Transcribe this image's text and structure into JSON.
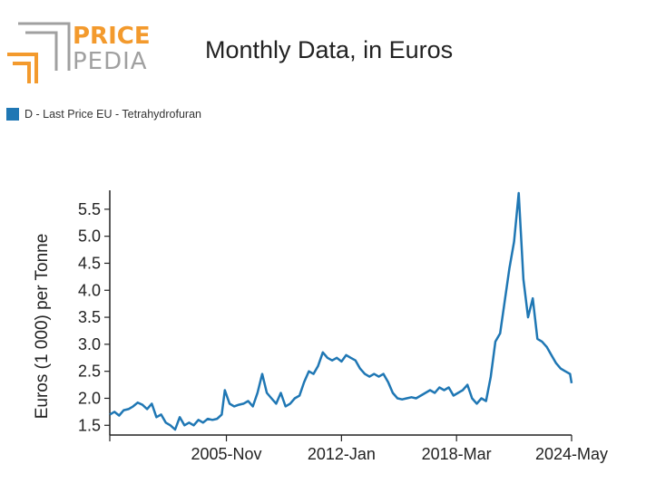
{
  "logo": {
    "word1": "PRICE",
    "word2": "PEDIA",
    "colors": {
      "orange": "#f39a2d",
      "gray": "#a0a0a0"
    }
  },
  "title": "Monthly Data, in Euros",
  "legend": [
    {
      "label": "D - Last Price EU - Tetrahydrofuran",
      "color": "#1f77b4"
    }
  ],
  "chart_data": {
    "type": "line",
    "ylabel": "Euros (1 000) per Tonne",
    "xlabel": "",
    "ylim": [
      1.32,
      5.85
    ],
    "yticks": [
      1.5,
      2.0,
      2.5,
      3.0,
      3.5,
      4.0,
      4.5,
      5.0,
      5.5
    ],
    "ytick_labels": [
      "1.5",
      "2.0",
      "2.5",
      "3.0",
      "3.5",
      "4.0",
      "4.5",
      "5.0",
      "5.5"
    ],
    "x_start": "1999-08",
    "x_end": "2024-05",
    "xticks": [
      "1999-08",
      "2005-11",
      "2012-01",
      "2018-03",
      "2024-05"
    ],
    "xtick_labels": [
      "",
      "2005-Nov",
      "2012-Jan",
      "2018-Mar",
      "2024-May"
    ],
    "grid": false,
    "legend_position": "top-left",
    "series": [
      {
        "name": "D - Last Price EU - Tetrahydrofuran",
        "color": "#1f77b4",
        "points": [
          [
            "1999-08",
            1.7
          ],
          [
            "1999-11",
            1.75
          ],
          [
            "2000-02",
            1.68
          ],
          [
            "2000-05",
            1.78
          ],
          [
            "2000-08",
            1.8
          ],
          [
            "2000-11",
            1.85
          ],
          [
            "2001-02",
            1.92
          ],
          [
            "2001-05",
            1.88
          ],
          [
            "2001-08",
            1.8
          ],
          [
            "2001-11",
            1.9
          ],
          [
            "2002-02",
            1.65
          ],
          [
            "2002-05",
            1.7
          ],
          [
            "2002-08",
            1.55
          ],
          [
            "2002-11",
            1.5
          ],
          [
            "2003-02",
            1.42
          ],
          [
            "2003-05",
            1.65
          ],
          [
            "2003-08",
            1.5
          ],
          [
            "2003-11",
            1.55
          ],
          [
            "2004-02",
            1.5
          ],
          [
            "2004-05",
            1.6
          ],
          [
            "2004-08",
            1.55
          ],
          [
            "2004-11",
            1.62
          ],
          [
            "2005-02",
            1.6
          ],
          [
            "2005-05",
            1.62
          ],
          [
            "2005-08",
            1.7
          ],
          [
            "2005-10",
            2.15
          ],
          [
            "2006-01",
            1.9
          ],
          [
            "2006-04",
            1.85
          ],
          [
            "2006-07",
            1.88
          ],
          [
            "2006-10",
            1.9
          ],
          [
            "2007-01",
            1.95
          ],
          [
            "2007-04",
            1.85
          ],
          [
            "2007-07",
            2.1
          ],
          [
            "2007-10",
            2.45
          ],
          [
            "2008-01",
            2.1
          ],
          [
            "2008-04",
            2.0
          ],
          [
            "2008-07",
            1.9
          ],
          [
            "2008-10",
            2.1
          ],
          [
            "2009-01",
            1.85
          ],
          [
            "2009-04",
            1.9
          ],
          [
            "2009-07",
            2.0
          ],
          [
            "2009-10",
            2.05
          ],
          [
            "2010-01",
            2.3
          ],
          [
            "2010-04",
            2.5
          ],
          [
            "2010-07",
            2.45
          ],
          [
            "2010-10",
            2.6
          ],
          [
            "2011-01",
            2.85
          ],
          [
            "2011-04",
            2.75
          ],
          [
            "2011-07",
            2.7
          ],
          [
            "2011-10",
            2.75
          ],
          [
            "2012-01",
            2.68
          ],
          [
            "2012-04",
            2.8
          ],
          [
            "2012-07",
            2.75
          ],
          [
            "2012-10",
            2.7
          ],
          [
            "2013-01",
            2.55
          ],
          [
            "2013-04",
            2.45
          ],
          [
            "2013-07",
            2.4
          ],
          [
            "2013-10",
            2.45
          ],
          [
            "2014-01",
            2.4
          ],
          [
            "2014-04",
            2.45
          ],
          [
            "2014-07",
            2.3
          ],
          [
            "2014-10",
            2.1
          ],
          [
            "2015-01",
            2.0
          ],
          [
            "2015-04",
            1.98
          ],
          [
            "2015-07",
            2.0
          ],
          [
            "2015-10",
            2.02
          ],
          [
            "2016-01",
            2.0
          ],
          [
            "2016-04",
            2.05
          ],
          [
            "2016-07",
            2.1
          ],
          [
            "2016-10",
            2.15
          ],
          [
            "2017-01",
            2.1
          ],
          [
            "2017-04",
            2.2
          ],
          [
            "2017-07",
            2.15
          ],
          [
            "2017-10",
            2.2
          ],
          [
            "2018-01",
            2.05
          ],
          [
            "2018-04",
            2.1
          ],
          [
            "2018-07",
            2.15
          ],
          [
            "2018-10",
            2.25
          ],
          [
            "2019-01",
            2.0
          ],
          [
            "2019-04",
            1.9
          ],
          [
            "2019-07",
            2.0
          ],
          [
            "2019-10",
            1.95
          ],
          [
            "2020-01",
            2.4
          ],
          [
            "2020-04",
            3.05
          ],
          [
            "2020-07",
            3.2
          ],
          [
            "2020-10",
            3.8
          ],
          [
            "2021-01",
            4.4
          ],
          [
            "2021-04",
            4.9
          ],
          [
            "2021-07",
            5.8
          ],
          [
            "2021-10",
            4.2
          ],
          [
            "2022-01",
            3.5
          ],
          [
            "2022-04",
            3.85
          ],
          [
            "2022-07",
            3.1
          ],
          [
            "2022-10",
            3.05
          ],
          [
            "2023-01",
            2.95
          ],
          [
            "2023-04",
            2.8
          ],
          [
            "2023-07",
            2.65
          ],
          [
            "2023-10",
            2.55
          ],
          [
            "2024-01",
            2.5
          ],
          [
            "2024-04",
            2.45
          ],
          [
            "2024-05",
            2.28
          ]
        ]
      }
    ]
  }
}
